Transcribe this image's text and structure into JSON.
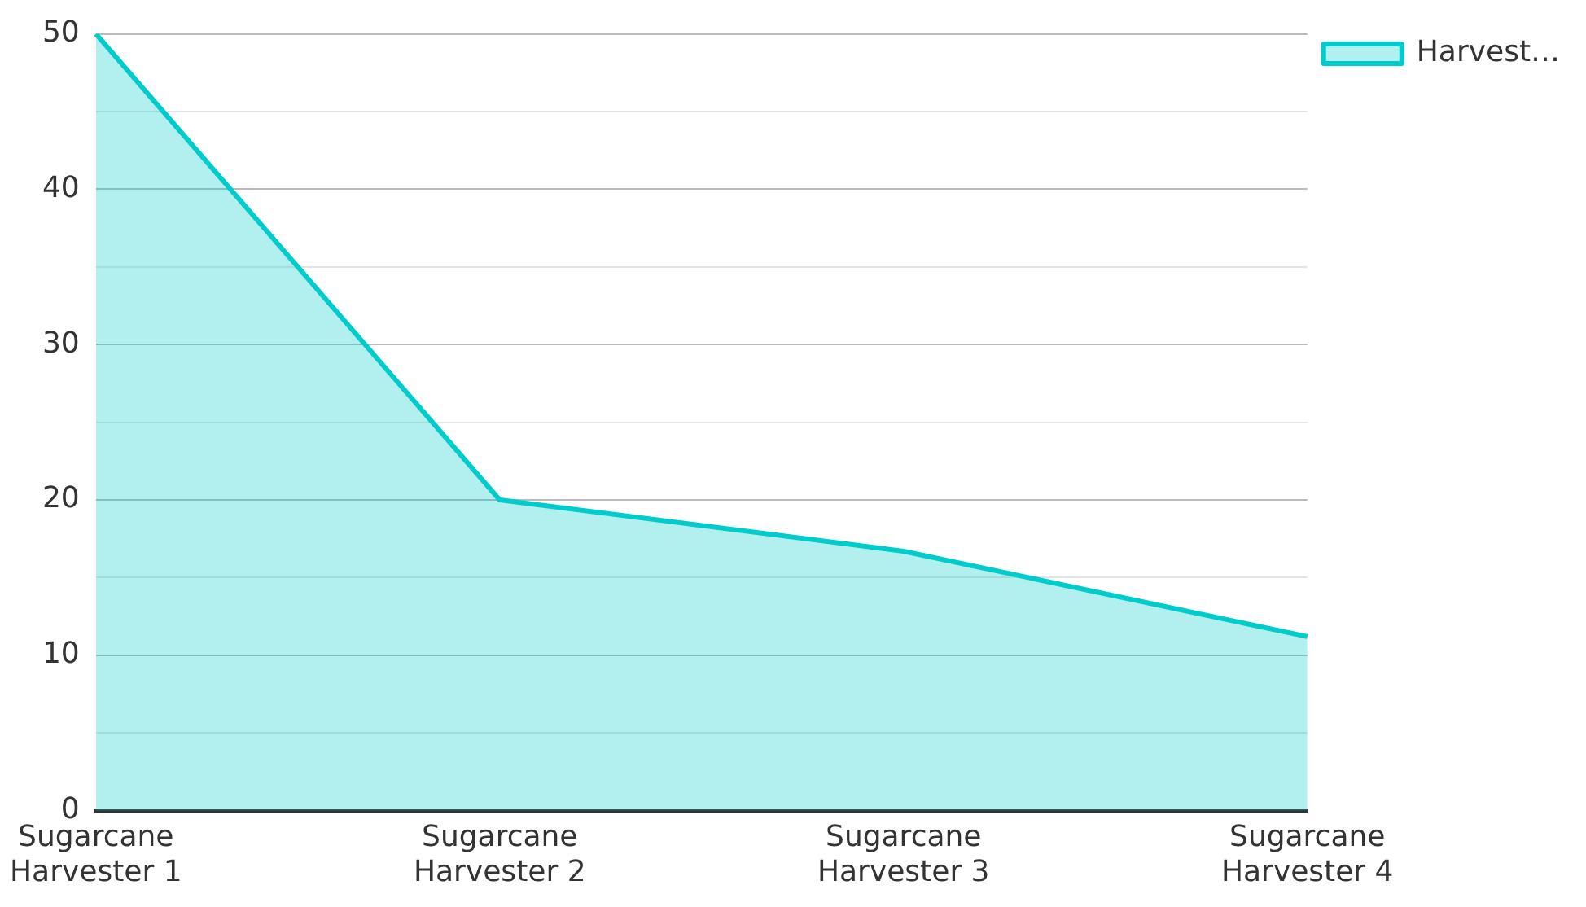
{
  "chart_data": {
    "type": "area",
    "categories": [
      "Sugarcane Harvester 1",
      "Sugarcane Harvester 2",
      "Sugarcane Harvester 3",
      "Sugarcane Harvester 4"
    ],
    "series": [
      {
        "name": "Harvest…",
        "color": "#00cccc",
        "values": [
          50,
          20,
          16.7,
          11.2
        ]
      }
    ],
    "ylim": [
      0,
      50
    ],
    "yticks": [
      0,
      {
        "value": 5,
        "label": null
      },
      10,
      {
        "value": 15,
        "label": null
      },
      20,
      {
        "value": 25,
        "label": null
      },
      30,
      {
        "value": 35,
        "label": null
      },
      40,
      {
        "value": 45,
        "label": null
      },
      50
    ],
    "grid": "y",
    "legend": "top right"
  }
}
